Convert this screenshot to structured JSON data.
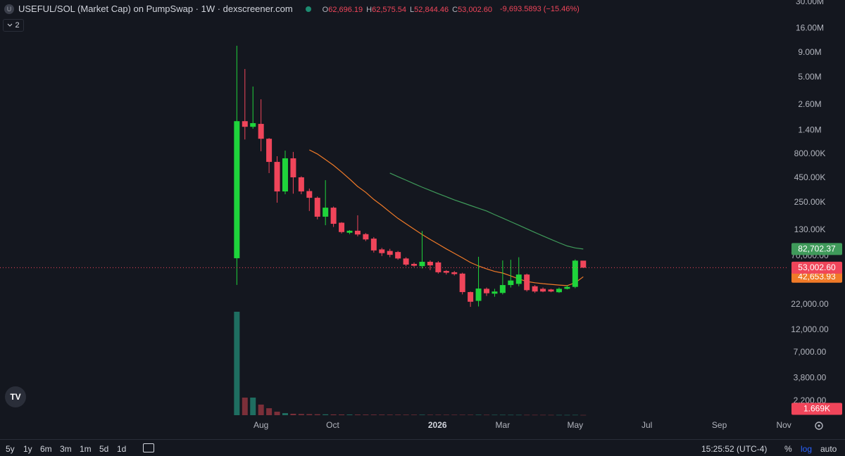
{
  "header": {
    "symbol_icon": "U",
    "title": "USEFUL/SOL (Market Cap) on PumpSwap · 1W · dexscreener.com",
    "ohlc": [
      {
        "key": "O",
        "value": "62,696.19"
      },
      {
        "key": "H",
        "value": "62,575.54"
      },
      {
        "key": "L",
        "value": "52,844.46"
      },
      {
        "key": "C",
        "value": "53,002.60"
      }
    ],
    "change": "-9,693.5893 (−15.46%)",
    "indicators": "2"
  },
  "chart_data": {
    "type": "candlestick",
    "log_scale": true,
    "grid": false,
    "ylim": [
      1567,
      31560000
    ],
    "yticks": [
      {
        "value": 30000000,
        "label": "30.00M"
      },
      {
        "value": 16000000,
        "label": "16.00M"
      },
      {
        "value": 9000000,
        "label": "9.00M"
      },
      {
        "value": 5000000,
        "label": "5.00M"
      },
      {
        "value": 2600000,
        "label": "2.60M"
      },
      {
        "value": 1400000,
        "label": "1.40M"
      },
      {
        "value": 800000,
        "label": "800.00K"
      },
      {
        "value": 450000,
        "label": "450.00K"
      },
      {
        "value": 250000,
        "label": "250.00K"
      },
      {
        "value": 130000,
        "label": "130.00K"
      },
      {
        "value": 70000,
        "label": "70,000.00"
      },
      {
        "value": 22000,
        "label": "22,000.00"
      },
      {
        "value": 12000,
        "label": "12,000.00"
      },
      {
        "value": 7000,
        "label": "7,000.00"
      },
      {
        "value": 3800,
        "label": "3,800.00"
      },
      {
        "value": 2200,
        "label": "2,200.00"
      }
    ],
    "xlim": [
      -29.4,
      68.5
    ],
    "xticks": [
      {
        "value": 3,
        "label": "Aug"
      },
      {
        "value": 11.9,
        "label": "Oct"
      },
      {
        "value": 24.9,
        "label": "2026"
      },
      {
        "value": 33,
        "label": "Mar"
      },
      {
        "value": 42,
        "label": "May"
      },
      {
        "value": 50.9,
        "label": "Jul"
      },
      {
        "value": 59.9,
        "label": "Sep"
      },
      {
        "value": 67.9,
        "label": "Nov"
      }
    ],
    "up_color": "#1fd43b",
    "down_color": "#f0455a",
    "candles": {
      "open": [
        66400,
        1750000,
        1530000,
        1640000,
        1150000,
        662000,
        327000,
        721000,
        458000,
        330000,
        281000,
        179000,
        222000,
        155000,
        122000,
        128000,
        118000,
        106000,
        82000,
        79000,
        77000,
        66000,
        58000,
        55000,
        61000,
        60000,
        49000,
        47500,
        46000,
        29600,
        24000,
        32000,
        28500,
        29000,
        35000,
        36000,
        45000,
        34000,
        32000,
        31500,
        29500,
        32000,
        33500,
        62696.19
      ],
      "high": [
        10600000,
        6080000,
        4000000,
        2950000,
        1170000,
        758000,
        867000,
        840000,
        470000,
        350000,
        290000,
        428000,
        228000,
        157000,
        130000,
        185000,
        121000,
        110000,
        85000,
        83000,
        79000,
        68000,
        60000,
        127000,
        63000,
        62000,
        50000,
        49000,
        47000,
        30000,
        68700,
        33000,
        32000,
        63000,
        64000,
        68000,
        46000,
        35000,
        33000,
        32000,
        33000,
        35000,
        64500,
        62575.54
      ],
      "low": [
        35100,
        1130000,
        1460000,
        853000,
        507000,
        250000,
        306000,
        310000,
        306000,
        205000,
        168000,
        146000,
        140000,
        120000,
        118000,
        112000,
        100000,
        76000,
        70000,
        68000,
        64000,
        55000,
        54000,
        52000,
        50000,
        46000,
        45000,
        44000,
        28000,
        20800,
        21000,
        27000,
        26500,
        28000,
        33000,
        34000,
        30000,
        29000,
        29500,
        29500,
        29000,
        31500,
        32500,
        52844.46
      ],
      "close": [
        1750000,
        1530000,
        1670000,
        1150000,
        662000,
        327000,
        721000,
        458000,
        327000,
        281000,
        179000,
        222000,
        151000,
        124000,
        128000,
        117000,
        104000,
        80000,
        75000,
        72000,
        66000,
        57000,
        55500,
        61000,
        56000,
        47500,
        47000,
        45500,
        29600,
        23500,
        32200,
        28800,
        30000,
        35000,
        39000,
        45000,
        31000,
        30000,
        30000,
        30000,
        32000,
        33500,
        62700,
        53002.6
      ],
      "close_labels": [
        null,
        null,
        null,
        null,
        null,
        null,
        null,
        null,
        null,
        null,
        null,
        null,
        null,
        null,
        null,
        null,
        null,
        null,
        null,
        null,
        null,
        null,
        null,
        null,
        null,
        null,
        null,
        null,
        null,
        null,
        null,
        null,
        null,
        null,
        null,
        null,
        null,
        null,
        null,
        null,
        null,
        null,
        null,
        "53,002.60"
      ]
    },
    "series": [
      {
        "color": "#f07a28",
        "values": [
          null,
          null,
          null,
          null,
          null,
          null,
          null,
          null,
          null,
          881000,
          800000,
          700000,
          610000,
          520000,
          440000,
          368000,
          320000,
          270000,
          234000,
          200000,
          172000,
          151000,
          133000,
          117000,
          104000,
          93000,
          83000,
          74600,
          67000,
          60000,
          55200,
          51500,
          48500,
          46600,
          43500,
          40500,
          38100,
          37000,
          36200,
          35600,
          35000,
          34500,
          37000,
          42653.93
        ],
        "value_labels": [
          null,
          null,
          null,
          null,
          null,
          null,
          null,
          null,
          null,
          null,
          null,
          null,
          null,
          null,
          null,
          null,
          null,
          null,
          null,
          null,
          null,
          null,
          null,
          null,
          null,
          null,
          null,
          null,
          null,
          null,
          null,
          null,
          null,
          null,
          null,
          null,
          null,
          null,
          null,
          null,
          null,
          null,
          null,
          "42,653.93"
        ]
      },
      {
        "color": "#3f9a5a",
        "values": [
          null,
          null,
          null,
          null,
          null,
          null,
          null,
          null,
          null,
          null,
          null,
          null,
          null,
          null,
          null,
          null,
          null,
          null,
          null,
          507000,
          465000,
          428000,
          393000,
          362000,
          335000,
          310000,
          288000,
          267000,
          250000,
          234000,
          219000,
          205000,
          188000,
          173000,
          159000,
          146000,
          134000,
          123000,
          113000,
          104000,
          96000,
          89000,
          85000,
          82702.37
        ],
        "value_labels": [
          null,
          null,
          null,
          null,
          null,
          null,
          null,
          null,
          null,
          null,
          null,
          null,
          null,
          null,
          null,
          null,
          null,
          null,
          null,
          null,
          null,
          null,
          null,
          null,
          null,
          null,
          null,
          null,
          null,
          null,
          null,
          null,
          null,
          null,
          null,
          null,
          null,
          null,
          null,
          null,
          null,
          null,
          null,
          "82,702.37"
        ]
      }
    ],
    "volume": {
      "vlim": [
        0,
        800000
      ],
      "up_color": "#1f6e61",
      "down_color": "#7b2f39",
      "label_color": "#f0455a",
      "values": [
        800000,
        136000,
        136000,
        82000,
        54000,
        27000,
        16000,
        11000,
        9000,
        8000,
        7000,
        6500,
        6000,
        5500,
        5000,
        4800,
        4600,
        4400,
        4200,
        4000,
        3900,
        3800,
        3700,
        3600,
        3500,
        3400,
        3300,
        3200,
        3200,
        3300,
        3400,
        3000,
        2900,
        2800,
        2700,
        2600,
        2500,
        2400,
        2300,
        2200,
        2100,
        2000,
        2500,
        1669
      ],
      "value_labels": [
        null,
        null,
        null,
        null,
        null,
        null,
        null,
        null,
        null,
        null,
        null,
        null,
        null,
        null,
        null,
        null,
        null,
        null,
        null,
        null,
        null,
        null,
        null,
        null,
        null,
        null,
        null,
        null,
        null,
        null,
        null,
        null,
        null,
        null,
        null,
        null,
        null,
        null,
        null,
        null,
        null,
        null,
        null,
        "1.669K"
      ]
    }
  },
  "toolbar": {
    "ranges": [
      "5y",
      "1y",
      "6m",
      "3m",
      "1m",
      "5d",
      "1d"
    ],
    "time": "15:25:52 (UTC-4)",
    "options": [
      "%",
      "log",
      "auto"
    ]
  }
}
